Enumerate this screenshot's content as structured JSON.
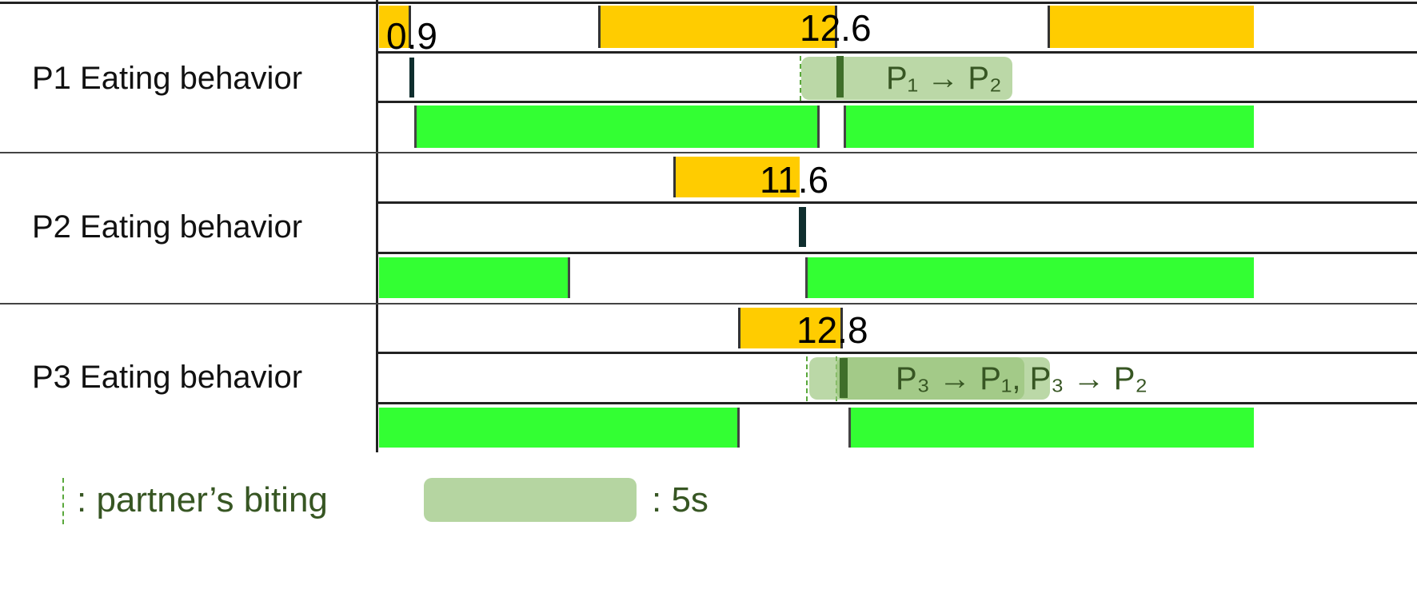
{
  "rows": [
    {
      "label": "P1 Eating behavior",
      "values": [
        "0.9",
        "12.6"
      ],
      "annotation": "P₁ → P₂"
    },
    {
      "label": "P2 Eating behavior",
      "values": [
        "11.6"
      ]
    },
    {
      "label": "P3 Eating behavior",
      "values": [
        "12.8"
      ],
      "annotation": "P₃ → P₁, P₃ → P₂"
    }
  ],
  "legend": {
    "dashed": ": partner’s biting",
    "box": ": 5s"
  },
  "colors": {
    "bite": "#ffcc00",
    "chew": "#33ff33",
    "window": "#b5d5a1",
    "text": "#375623"
  }
}
